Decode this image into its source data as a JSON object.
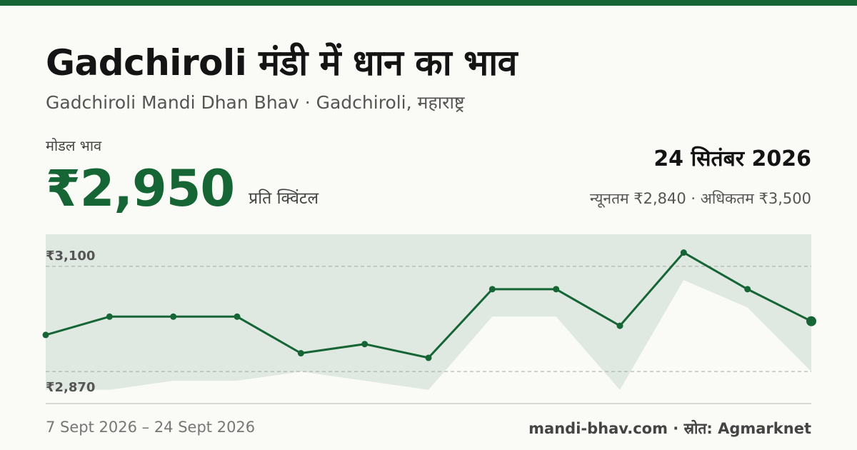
{
  "header": {
    "title": "Gadchiroli मंडी में धान का भाव",
    "subtitle": "Gadchiroli Mandi Dhan Bhav · Gadchiroli, महाराष्ट्र"
  },
  "price": {
    "label": "मोडल भाव",
    "value": "₹2,950",
    "unit": "प्रति क्विंटल"
  },
  "summary": {
    "date": "24 सितंबर 2026",
    "minmax": "न्यूनतम ₹2,840 · अधिकतम ₹3,500"
  },
  "footer": {
    "range": "7 Sept 2026 – 24 Sept 2026",
    "source": "mandi-bhav.com · स्रोत: Agmarknet"
  },
  "colors": {
    "accent": "#166534",
    "band": "#dfe9e2"
  },
  "chart_data": {
    "type": "line",
    "y_ticks": [
      {
        "value": 3100,
        "label": "₹3,100"
      },
      {
        "value": 2870,
        "label": "₹2,870"
      }
    ],
    "ylim": [
      2800,
      3170
    ],
    "series": [
      {
        "values": [
          2950,
          2990,
          2990,
          2990,
          2910,
          2930,
          2900,
          3050,
          3050,
          2970,
          3130,
          3050,
          2980
        ]
      },
      {
        "values": [
          2830,
          2830,
          2850,
          2850,
          2870,
          2850,
          2830,
          2990,
          2990,
          2830,
          3070,
          3010,
          2870
        ]
      }
    ],
    "grid": true
  }
}
